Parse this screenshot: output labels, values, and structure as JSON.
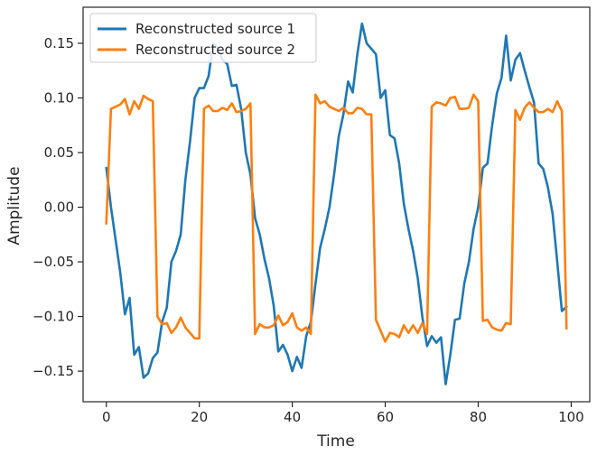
{
  "chart_data": {
    "type": "line",
    "xlabel": "Time",
    "ylabel": "Amplitude",
    "xlim": [
      -5,
      104
    ],
    "ylim": [
      -0.178,
      0.183
    ],
    "xticks": [
      0,
      20,
      40,
      60,
      80,
      100
    ],
    "yticks": [
      -0.15,
      -0.1,
      -0.05,
      0.0,
      0.05,
      0.1,
      0.15
    ],
    "ytick_labels": [
      "−0.15",
      "−0.10",
      "−0.05",
      "0.00",
      "0.05",
      "0.10",
      "0.15"
    ],
    "grid": false,
    "legend_position": "top-left",
    "series": [
      {
        "name": "Reconstructed source 1",
        "color": "#1f77b4",
        "x": [
          0,
          1,
          2,
          3,
          4,
          5,
          6,
          7,
          8,
          9,
          10,
          11,
          12,
          13,
          14,
          15,
          16,
          17,
          18,
          19,
          20,
          21,
          22,
          23,
          24,
          25,
          26,
          27,
          28,
          29,
          30,
          31,
          32,
          33,
          34,
          35,
          36,
          37,
          38,
          39,
          40,
          41,
          42,
          43,
          44,
          45,
          46,
          47,
          48,
          49,
          50,
          51,
          52,
          53,
          54,
          55,
          56,
          57,
          58,
          59,
          60,
          61,
          62,
          63,
          64,
          65,
          66,
          67,
          68,
          69,
          70,
          71,
          72,
          73,
          74,
          75,
          76,
          77,
          78,
          79,
          80,
          81,
          82,
          83,
          84,
          85,
          86,
          87,
          88,
          89,
          90,
          91,
          92,
          93,
          94,
          95,
          96,
          97,
          98,
          99
        ],
        "y": [
          0.036,
          0.0,
          -0.03,
          -0.06,
          -0.098,
          -0.083,
          -0.135,
          -0.128,
          -0.156,
          -0.152,
          -0.138,
          -0.133,
          -0.105,
          -0.092,
          -0.05,
          -0.04,
          -0.025,
          0.025,
          0.06,
          0.1,
          0.109,
          0.109,
          0.12,
          0.15,
          0.145,
          0.135,
          0.131,
          0.111,
          0.112,
          0.09,
          0.05,
          0.03,
          -0.01,
          -0.025,
          -0.047,
          -0.065,
          -0.09,
          -0.132,
          -0.126,
          -0.135,
          -0.15,
          -0.137,
          -0.147,
          -0.118,
          -0.105,
          -0.07,
          -0.037,
          -0.02,
          0.0,
          0.03,
          0.065,
          0.085,
          0.115,
          0.105,
          0.14,
          0.168,
          0.15,
          0.145,
          0.14,
          0.1,
          0.107,
          0.066,
          0.063,
          0.04,
          0.003,
          -0.02,
          -0.04,
          -0.065,
          -0.101,
          -0.127,
          -0.118,
          -0.124,
          -0.119,
          -0.162,
          -0.135,
          -0.103,
          -0.102,
          -0.07,
          -0.05,
          -0.02,
          0.0,
          0.036,
          0.04,
          0.075,
          0.104,
          0.118,
          0.157,
          0.116,
          0.135,
          0.141,
          0.125,
          0.11,
          0.096,
          0.04,
          0.035,
          0.018,
          -0.006,
          -0.05,
          -0.095,
          -0.091
        ]
      },
      {
        "name": "Reconstructed source 2",
        "color": "#ff7f0e",
        "x": [
          0,
          1,
          2,
          3,
          4,
          5,
          6,
          7,
          8,
          9,
          10,
          11,
          12,
          13,
          14,
          15,
          16,
          17,
          18,
          19,
          20,
          21,
          22,
          23,
          24,
          25,
          26,
          27,
          28,
          29,
          30,
          31,
          32,
          33,
          34,
          35,
          36,
          37,
          38,
          39,
          40,
          41,
          42,
          43,
          44,
          45,
          46,
          47,
          48,
          49,
          50,
          51,
          52,
          53,
          54,
          55,
          56,
          57,
          58,
          59,
          60,
          61,
          62,
          63,
          64,
          65,
          66,
          67,
          68,
          69,
          70,
          71,
          72,
          73,
          74,
          75,
          76,
          77,
          78,
          79,
          80,
          81,
          82,
          83,
          84,
          85,
          86,
          87,
          88,
          89,
          90,
          91,
          92,
          93,
          94,
          95,
          96,
          97,
          98,
          99
        ],
        "y": [
          -0.015,
          0.09,
          0.092,
          0.094,
          0.099,
          0.085,
          0.097,
          0.09,
          0.102,
          0.099,
          0.097,
          -0.1,
          -0.107,
          -0.106,
          -0.115,
          -0.11,
          -0.101,
          -0.11,
          -0.115,
          -0.12,
          -0.12,
          0.09,
          0.093,
          0.088,
          0.088,
          0.091,
          0.089,
          0.095,
          0.087,
          0.088,
          0.09,
          0.095,
          -0.116,
          -0.107,
          -0.11,
          -0.11,
          -0.108,
          -0.099,
          -0.108,
          -0.105,
          -0.097,
          -0.11,
          -0.113,
          -0.11,
          -0.116,
          0.103,
          0.095,
          0.097,
          0.092,
          0.09,
          0.088,
          0.091,
          0.086,
          0.086,
          0.091,
          0.09,
          0.085,
          0.085,
          -0.103,
          -0.113,
          -0.123,
          -0.115,
          -0.116,
          -0.119,
          -0.108,
          -0.115,
          -0.108,
          -0.115,
          -0.106,
          -0.116,
          0.092,
          0.096,
          0.095,
          0.093,
          0.1,
          0.101,
          0.09,
          0.09,
          0.091,
          0.103,
          0.097,
          -0.104,
          -0.103,
          -0.11,
          -0.112,
          -0.113,
          -0.106,
          -0.107,
          0.089,
          0.08,
          0.091,
          0.096,
          0.091,
          0.087,
          0.087,
          0.09,
          0.087,
          0.097,
          0.088,
          -0.111
        ]
      }
    ]
  }
}
